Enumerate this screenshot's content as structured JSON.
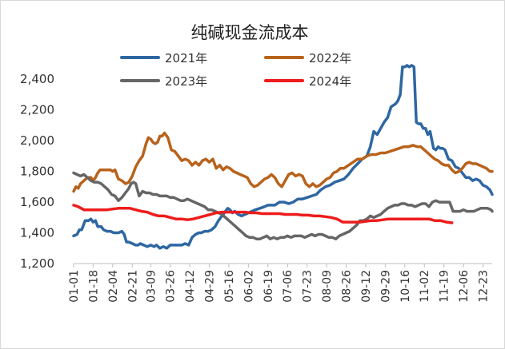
{
  "chart_data": {
    "type": "line",
    "title": "纯碱现金流成本",
    "xlabel": "",
    "ylabel": "",
    "ylim": [
      1200,
      2500
    ],
    "yticks": [
      1200,
      1400,
      1600,
      1800,
      2000,
      2200,
      2400
    ],
    "ytick_labels": [
      "1,200",
      "1,400",
      "1,600",
      "1,800",
      "2,000",
      "2,200",
      "2,400"
    ],
    "x_range": [
      1,
      365
    ],
    "xtick_labels": [
      "01-01",
      "01-18",
      "02-04",
      "02-21",
      "03-09",
      "03-26",
      "04-12",
      "04-29",
      "05-16",
      "06-02",
      "06-19",
      "07-06",
      "07-23",
      "08-09",
      "08-26",
      "09-12",
      "09-29",
      "10-16",
      "11-02",
      "11-19",
      "12-06",
      "12-23"
    ],
    "xtick_days": [
      1,
      18,
      35,
      52,
      68,
      85,
      102,
      119,
      136,
      153,
      170,
      187,
      204,
      221,
      238,
      255,
      272,
      289,
      306,
      323,
      340,
      357
    ],
    "grid": false,
    "legend": "top",
    "series": [
      {
        "name": "2021年",
        "color": "#2E67A2",
        "x": [
          1,
          4,
          6,
          8,
          11,
          14,
          16,
          18,
          20,
          22,
          25,
          27,
          30,
          33,
          36,
          40,
          43,
          45,
          47,
          49,
          52,
          55,
          57,
          59,
          62,
          65,
          68,
          71,
          73,
          76,
          79,
          82,
          85,
          88,
          91,
          95,
          98,
          101,
          104,
          107,
          110,
          112,
          115,
          118,
          121,
          124,
          127,
          130,
          133,
          135,
          137,
          139,
          141,
          144,
          147,
          150,
          153,
          156,
          159,
          163,
          167,
          170,
          173,
          176,
          180,
          184,
          188,
          192,
          196,
          200,
          204,
          208,
          212,
          216,
          220,
          224,
          228,
          232,
          236,
          240,
          244,
          248,
          252,
          256,
          259,
          262,
          265,
          268,
          271,
          274,
          277,
          279,
          281,
          283,
          285,
          287,
          289,
          291,
          293,
          295,
          297,
          299,
          301,
          303,
          305,
          307,
          309,
          311,
          314,
          316,
          318,
          320,
          322,
          324,
          327,
          330,
          333,
          336,
          339,
          342,
          345,
          348,
          351,
          354,
          357,
          360,
          363,
          365
        ],
        "values": [
          1380,
          1390,
          1420,
          1420,
          1480,
          1480,
          1490,
          1470,
          1480,
          1440,
          1440,
          1420,
          1410,
          1410,
          1400,
          1400,
          1410,
          1390,
          1340,
          1340,
          1330,
          1320,
          1320,
          1330,
          1320,
          1310,
          1320,
          1310,
          1320,
          1300,
          1310,
          1300,
          1320,
          1320,
          1320,
          1320,
          1330,
          1320,
          1370,
          1390,
          1400,
          1400,
          1410,
          1410,
          1420,
          1440,
          1480,
          1510,
          1540,
          1560,
          1550,
          1530,
          1540,
          1520,
          1510,
          1520,
          1530,
          1540,
          1550,
          1560,
          1570,
          1580,
          1580,
          1580,
          1600,
          1600,
          1590,
          1600,
          1620,
          1620,
          1630,
          1640,
          1650,
          1680,
          1700,
          1710,
          1730,
          1740,
          1750,
          1780,
          1820,
          1850,
          1880,
          1900,
          1960,
          2060,
          2040,
          2080,
          2120,
          2150,
          2220,
          2230,
          2240,
          2260,
          2300,
          2480,
          2480,
          2490,
          2480,
          2490,
          2480,
          2120,
          2110,
          2110,
          2080,
          2080,
          2040,
          2060,
          1950,
          1940,
          1960,
          1950,
          1950,
          1940,
          1880,
          1870,
          1830,
          1820,
          1790,
          1760,
          1760,
          1740,
          1750,
          1740,
          1710,
          1700,
          1680,
          1650
        ]
      },
      {
        "name": "2022年",
        "color": "#B8621B",
        "x": [
          1,
          3,
          5,
          7,
          10,
          13,
          16,
          18,
          20,
          22,
          24,
          27,
          30,
          33,
          35,
          37,
          40,
          43,
          46,
          49,
          52,
          55,
          58,
          61,
          64,
          66,
          68,
          70,
          72,
          74,
          76,
          78,
          80,
          83,
          86,
          89,
          92,
          95,
          98,
          101,
          104,
          107,
          110,
          113,
          116,
          119,
          122,
          125,
          128,
          131,
          134,
          137,
          140,
          143,
          146,
          149,
          152,
          155,
          158,
          161,
          164,
          167,
          170,
          173,
          176,
          179,
          182,
          185,
          188,
          191,
          194,
          197,
          200,
          203,
          206,
          209,
          212,
          215,
          218,
          221,
          224,
          227,
          230,
          233,
          236,
          240,
          244,
          248,
          252,
          256,
          260,
          264,
          268,
          272,
          276,
          280,
          284,
          288,
          292,
          296,
          300,
          303,
          306,
          309,
          312,
          315,
          318,
          321,
          324,
          327,
          330,
          333,
          336,
          339,
          342,
          345,
          348,
          351,
          354,
          357,
          360,
          363,
          365
        ],
        "values": [
          1670,
          1700,
          1690,
          1720,
          1740,
          1760,
          1760,
          1740,
          1760,
          1790,
          1810,
          1810,
          1810,
          1810,
          1800,
          1810,
          1750,
          1740,
          1720,
          1730,
          1770,
          1830,
          1870,
          1900,
          1980,
          2020,
          2010,
          1990,
          1980,
          1990,
          2030,
          2030,
          2050,
          2020,
          1940,
          1930,
          1900,
          1870,
          1880,
          1870,
          1840,
          1860,
          1840,
          1870,
          1880,
          1860,
          1880,
          1820,
          1840,
          1810,
          1830,
          1820,
          1800,
          1790,
          1780,
          1770,
          1760,
          1720,
          1700,
          1710,
          1730,
          1750,
          1760,
          1780,
          1760,
          1720,
          1700,
          1740,
          1780,
          1790,
          1770,
          1780,
          1770,
          1720,
          1700,
          1720,
          1700,
          1710,
          1730,
          1750,
          1760,
          1790,
          1800,
          1820,
          1820,
          1840,
          1860,
          1880,
          1880,
          1900,
          1910,
          1910,
          1920,
          1920,
          1930,
          1940,
          1950,
          1960,
          1960,
          1970,
          1960,
          1960,
          1940,
          1920,
          1900,
          1880,
          1870,
          1850,
          1840,
          1840,
          1810,
          1790,
          1800,
          1820,
          1850,
          1860,
          1850,
          1850,
          1840,
          1830,
          1820,
          1800,
          1800
        ]
      },
      {
        "name": "2023年",
        "color": "#666666",
        "x": [
          1,
          4,
          7,
          10,
          13,
          16,
          19,
          22,
          25,
          28,
          31,
          34,
          37,
          40,
          43,
          46,
          49,
          51,
          53,
          55,
          58,
          61,
          64,
          67,
          70,
          73,
          76,
          79,
          82,
          85,
          88,
          91,
          94,
          97,
          100,
          103,
          106,
          109,
          112,
          115,
          118,
          121,
          124,
          127,
          130,
          133,
          136,
          139,
          142,
          145,
          148,
          151,
          154,
          157,
          160,
          163,
          166,
          169,
          172,
          175,
          178,
          181,
          184,
          187,
          190,
          193,
          196,
          199,
          202,
          205,
          208,
          211,
          214,
          217,
          220,
          223,
          226,
          229,
          232,
          235,
          238,
          241,
          244,
          247,
          250,
          253,
          256,
          259,
          262,
          265,
          268,
          271,
          274,
          277,
          280,
          283,
          286,
          289,
          292,
          295,
          298,
          301,
          304,
          307,
          310,
          313,
          316,
          319,
          322,
          325,
          328,
          331,
          334,
          337,
          340,
          343,
          346,
          349,
          352,
          355,
          358,
          361,
          364,
          365
        ],
        "values": [
          1790,
          1780,
          1770,
          1780,
          1760,
          1740,
          1730,
          1730,
          1720,
          1700,
          1680,
          1650,
          1640,
          1610,
          1630,
          1660,
          1690,
          1720,
          1730,
          1720,
          1640,
          1670,
          1660,
          1660,
          1650,
          1650,
          1640,
          1640,
          1640,
          1630,
          1630,
          1620,
          1610,
          1610,
          1620,
          1610,
          1600,
          1590,
          1580,
          1570,
          1550,
          1550,
          1540,
          1530,
          1520,
          1500,
          1480,
          1460,
          1440,
          1420,
          1400,
          1380,
          1370,
          1370,
          1360,
          1360,
          1370,
          1380,
          1360,
          1370,
          1360,
          1370,
          1370,
          1380,
          1370,
          1380,
          1380,
          1380,
          1370,
          1380,
          1390,
          1380,
          1390,
          1390,
          1380,
          1370,
          1370,
          1360,
          1380,
          1390,
          1400,
          1410,
          1430,
          1450,
          1480,
          1480,
          1490,
          1510,
          1500,
          1510,
          1520,
          1540,
          1560,
          1570,
          1580,
          1580,
          1590,
          1590,
          1580,
          1580,
          1570,
          1580,
          1590,
          1590,
          1570,
          1600,
          1610,
          1600,
          1600,
          1600,
          1600,
          1540,
          1540,
          1540,
          1550,
          1540,
          1540,
          1540,
          1550,
          1560,
          1560,
          1560,
          1550,
          1540
        ]
      },
      {
        "name": "2024年",
        "color": "#EE1C1C",
        "x": [
          1,
          5,
          10,
          15,
          20,
          25,
          30,
          35,
          40,
          45,
          50,
          55,
          60,
          65,
          70,
          75,
          80,
          85,
          90,
          95,
          100,
          105,
          110,
          115,
          120,
          125,
          130,
          135,
          140,
          145,
          150,
          155,
          160,
          165,
          170,
          175,
          180,
          185,
          190,
          195,
          200,
          205,
          210,
          215,
          220,
          225,
          230,
          235,
          240,
          245,
          250,
          255,
          260,
          265,
          270,
          275,
          280,
          285,
          290,
          295,
          300,
          305,
          310,
          315,
          320,
          325,
          330
        ],
        "values": [
          1580,
          1570,
          1550,
          1550,
          1550,
          1550,
          1550,
          1555,
          1560,
          1560,
          1560,
          1550,
          1540,
          1535,
          1520,
          1510,
          1510,
          1500,
          1490,
          1490,
          1485,
          1490,
          1500,
          1510,
          1520,
          1530,
          1535,
          1535,
          1535,
          1535,
          1535,
          1530,
          1530,
          1525,
          1525,
          1525,
          1525,
          1520,
          1520,
          1520,
          1515,
          1515,
          1510,
          1510,
          1505,
          1500,
          1490,
          1470,
          1470,
          1470,
          1470,
          1475,
          1480,
          1480,
          1485,
          1490,
          1490,
          1490,
          1490,
          1490,
          1490,
          1490,
          1490,
          1480,
          1480,
          1470,
          1465
        ]
      }
    ]
  }
}
